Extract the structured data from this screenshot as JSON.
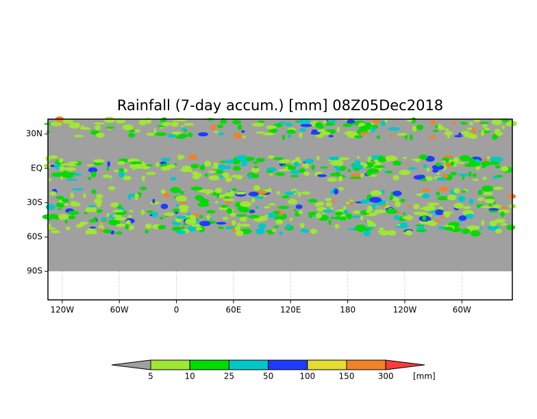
{
  "title": "Rainfall (7-day accum.) [mm] 08Z05Dec2018",
  "map": {
    "ylim": [
      -115,
      43
    ],
    "xlim": [
      -135,
      353
    ],
    "yticks": [
      {
        "value": 30,
        "label": "30N"
      },
      {
        "value": 0,
        "label": "EQ"
      },
      {
        "value": -30,
        "label": "30S"
      },
      {
        "value": -60,
        "label": "60S"
      },
      {
        "value": -90,
        "label": "90S"
      }
    ],
    "xticks": [
      {
        "value": -120,
        "label": "120W"
      },
      {
        "value": -60,
        "label": "60W"
      },
      0,
      {
        "value": 60,
        "label": "60E"
      },
      {
        "value": 120,
        "label": "120E"
      },
      180,
      {
        "value": 240,
        "label": "120W"
      },
      {
        "value": 300,
        "label": "60W"
      }
    ]
  },
  "colorbar": {
    "levels": [
      5,
      10,
      25,
      50,
      100,
      150,
      300
    ],
    "colors": [
      "#a0a0a0",
      "#a0e632",
      "#00dc00",
      "#00c8c8",
      "#1e3cff",
      "#e6dc32",
      "#f08228",
      "#fa3c3c"
    ],
    "unit": "[mm]"
  }
}
